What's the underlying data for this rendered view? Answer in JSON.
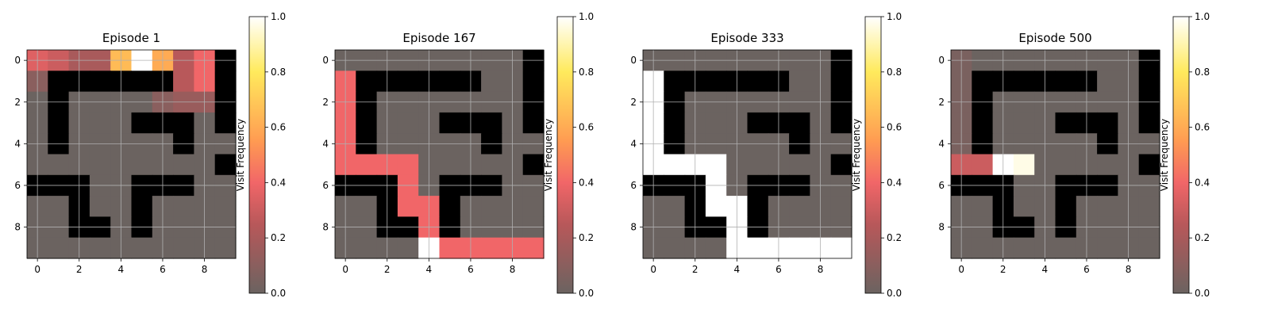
{
  "figure": {
    "background": "#ffffff"
  },
  "colormap": {
    "stops": [
      [
        0.0,
        "#6b6360"
      ],
      [
        0.25,
        "#b8585a"
      ],
      [
        0.4,
        "#f16668"
      ],
      [
        0.55,
        "#ff9b52"
      ],
      [
        0.8,
        "#ffea5c"
      ],
      [
        1.0,
        "#ffffff"
      ]
    ]
  },
  "chart_data": [
    {
      "type": "heatmap",
      "title": "Episode 1",
      "x_ticks": [
        "0",
        "2",
        "4",
        "6",
        "8"
      ],
      "y_ticks": [
        "0",
        "2",
        "4",
        "6",
        "8"
      ],
      "xlim": [
        -0.5,
        9.5
      ],
      "ylim": [
        9.5,
        -0.5
      ],
      "grid": true,
      "colorbar": {
        "label": "Visit Frequency",
        "range": [
          0,
          1
        ],
        "ticks": [
          "0.0",
          "0.2",
          "0.4",
          "0.6",
          "0.8",
          "1.0"
        ]
      },
      "values": [
        [
          0.35,
          0.3,
          0.2,
          0.2,
          0.65,
          1.0,
          0.6,
          0.25,
          0.4,
          null
        ],
        [
          0.1,
          null,
          null,
          null,
          null,
          null,
          null,
          0.25,
          0.4,
          null
        ],
        [
          0.0,
          null,
          0.0,
          0.0,
          0.0,
          0.0,
          0.1,
          0.15,
          0.15,
          null
        ],
        [
          0.0,
          null,
          0.0,
          0.0,
          0.0,
          null,
          null,
          null,
          0.0,
          null
        ],
        [
          0.0,
          null,
          0.0,
          0.0,
          0.0,
          0.0,
          0.0,
          null,
          0.0,
          0.0
        ],
        [
          0.0,
          0.0,
          0.0,
          0.0,
          0.0,
          0.0,
          0.0,
          0.0,
          0.0,
          null
        ],
        [
          null,
          null,
          null,
          0.0,
          0.0,
          null,
          null,
          null,
          0.0,
          0.0
        ],
        [
          0.0,
          0.0,
          null,
          0.0,
          0.0,
          null,
          0.0,
          0.0,
          0.0,
          0.0
        ],
        [
          0.0,
          0.0,
          null,
          null,
          0.0,
          null,
          0.0,
          0.0,
          0.0,
          0.0
        ],
        [
          0.0,
          0.0,
          0.0,
          0.0,
          0.0,
          0.0,
          0.0,
          0.0,
          0.0,
          0.0
        ]
      ]
    },
    {
      "type": "heatmap",
      "title": "Episode 167",
      "x_ticks": [
        "0",
        "2",
        "4",
        "6",
        "8"
      ],
      "y_ticks": [
        "0",
        "2",
        "4",
        "6",
        "8"
      ],
      "xlim": [
        -0.5,
        9.5
      ],
      "ylim": [
        9.5,
        -0.5
      ],
      "grid": true,
      "colorbar": {
        "label": "Visit Frequency",
        "range": [
          0,
          1
        ],
        "ticks": [
          "0.0",
          "0.2",
          "0.4",
          "0.6",
          "0.8",
          "1.0"
        ]
      },
      "values": [
        [
          0.0,
          0.0,
          0.0,
          0.0,
          0.0,
          0.0,
          0.0,
          0.0,
          0.0,
          null
        ],
        [
          0.4,
          null,
          null,
          null,
          null,
          null,
          null,
          0.0,
          0.0,
          null
        ],
        [
          0.4,
          null,
          0.0,
          0.0,
          0.0,
          0.0,
          0.0,
          0.0,
          0.0,
          null
        ],
        [
          0.4,
          null,
          0.0,
          0.0,
          0.0,
          null,
          null,
          null,
          0.0,
          null
        ],
        [
          0.4,
          null,
          0.0,
          0.0,
          0.0,
          0.0,
          0.0,
          null,
          0.0,
          0.0
        ],
        [
          0.4,
          0.4,
          0.4,
          0.4,
          0.0,
          0.0,
          0.0,
          0.0,
          0.0,
          null
        ],
        [
          null,
          null,
          null,
          0.4,
          0.0,
          null,
          null,
          null,
          0.0,
          0.0
        ],
        [
          0.0,
          0.0,
          null,
          0.4,
          0.4,
          null,
          0.0,
          0.0,
          0.0,
          0.0
        ],
        [
          0.0,
          0.0,
          null,
          null,
          0.4,
          null,
          0.0,
          0.0,
          0.0,
          0.0
        ],
        [
          0.0,
          0.0,
          0.0,
          0.0,
          1.0,
          0.4,
          0.4,
          0.4,
          0.4,
          0.4
        ]
      ]
    },
    {
      "type": "heatmap",
      "title": "Episode 333",
      "x_ticks": [
        "0",
        "2",
        "4",
        "6",
        "8"
      ],
      "y_ticks": [
        "0",
        "2",
        "4",
        "6",
        "8"
      ],
      "xlim": [
        -0.5,
        9.5
      ],
      "ylim": [
        9.5,
        -0.5
      ],
      "grid": true,
      "colorbar": {
        "label": "Visit Frequency",
        "range": [
          0,
          1
        ],
        "ticks": [
          "0.0",
          "0.2",
          "0.4",
          "0.6",
          "0.8",
          "1.0"
        ]
      },
      "values": [
        [
          0.0,
          0.0,
          0.0,
          0.0,
          0.0,
          0.0,
          0.0,
          0.0,
          0.0,
          null
        ],
        [
          1.0,
          null,
          null,
          null,
          null,
          null,
          null,
          0.0,
          0.0,
          null
        ],
        [
          1.0,
          null,
          0.0,
          0.0,
          0.0,
          0.0,
          0.0,
          0.0,
          0.0,
          null
        ],
        [
          1.0,
          null,
          0.0,
          0.0,
          0.0,
          null,
          null,
          null,
          0.0,
          null
        ],
        [
          1.0,
          null,
          0.0,
          0.0,
          0.0,
          0.0,
          0.0,
          null,
          0.0,
          0.0
        ],
        [
          1.0,
          1.0,
          1.0,
          1.0,
          0.0,
          0.0,
          0.0,
          0.0,
          0.0,
          null
        ],
        [
          null,
          null,
          null,
          1.0,
          0.0,
          null,
          null,
          null,
          0.0,
          0.0
        ],
        [
          0.0,
          0.0,
          null,
          1.0,
          1.0,
          null,
          0.0,
          0.0,
          0.0,
          0.0
        ],
        [
          0.0,
          0.0,
          null,
          null,
          1.0,
          null,
          0.0,
          0.0,
          0.0,
          0.0
        ],
        [
          0.0,
          0.0,
          0.0,
          0.0,
          1.0,
          1.0,
          1.0,
          1.0,
          1.0,
          1.0
        ]
      ]
    },
    {
      "type": "heatmap",
      "title": "Episode 500",
      "x_ticks": [
        "0",
        "2",
        "4",
        "6",
        "8"
      ],
      "y_ticks": [
        "0",
        "2",
        "4",
        "6",
        "8"
      ],
      "xlim": [
        -0.5,
        9.5
      ],
      "ylim": [
        9.5,
        -0.5
      ],
      "grid": true,
      "colorbar": {
        "label": "Visit Frequency",
        "range": [
          0,
          1
        ],
        "ticks": [
          "0.0",
          "0.2",
          "0.4",
          "0.6",
          "0.8",
          "1.0"
        ]
      },
      "values": [
        [
          0.05,
          0.0,
          0.0,
          0.0,
          0.0,
          0.0,
          0.0,
          0.0,
          0.0,
          null
        ],
        [
          0.05,
          null,
          null,
          null,
          null,
          null,
          null,
          0.0,
          0.0,
          null
        ],
        [
          0.05,
          null,
          0.0,
          0.0,
          0.0,
          0.0,
          0.0,
          0.0,
          0.0,
          null
        ],
        [
          0.05,
          null,
          0.0,
          0.0,
          0.0,
          null,
          null,
          null,
          0.0,
          null
        ],
        [
          0.05,
          null,
          0.0,
          0.0,
          0.0,
          0.0,
          0.0,
          null,
          0.0,
          0.0
        ],
        [
          0.3,
          0.3,
          1.0,
          0.97,
          0.0,
          0.0,
          0.0,
          0.0,
          0.0,
          null
        ],
        [
          null,
          null,
          null,
          0.0,
          0.0,
          null,
          null,
          null,
          0.0,
          0.0
        ],
        [
          0.0,
          0.0,
          null,
          0.0,
          0.0,
          null,
          0.0,
          0.0,
          0.0,
          0.0
        ],
        [
          0.0,
          0.0,
          null,
          null,
          0.0,
          null,
          0.0,
          0.0,
          0.0,
          0.0
        ],
        [
          0.0,
          0.0,
          0.0,
          0.0,
          0.0,
          0.0,
          0.0,
          0.0,
          0.0,
          0.0
        ]
      ]
    }
  ]
}
